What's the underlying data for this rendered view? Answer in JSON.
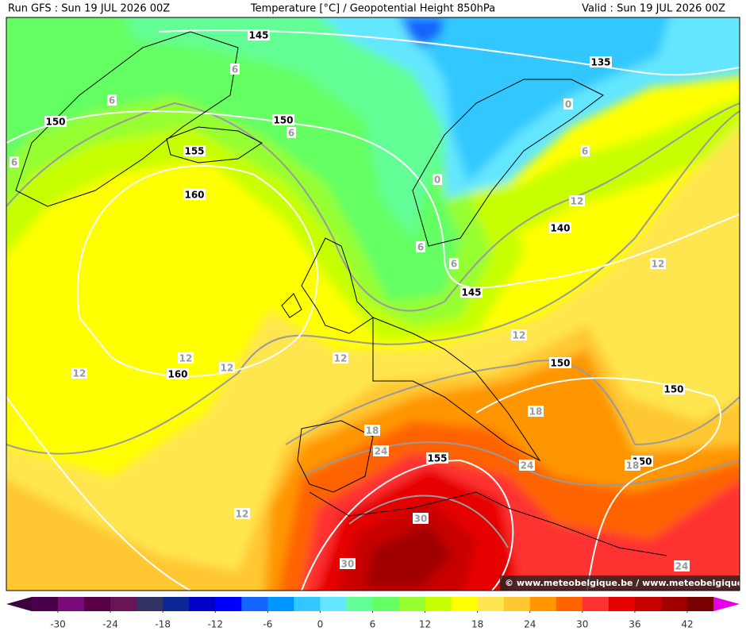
{
  "header": {
    "left": "Run GFS : Sun 19 JUL 2026 00Z",
    "center": "Temperature [°C] / Geopotential Height 850hPa",
    "right": "Valid : Sun 19 JUL 2026 00Z"
  },
  "map": {
    "height_labels": [
      "145",
      "135",
      "150",
      "150",
      "155",
      "160",
      "140",
      "145",
      "160",
      "150",
      "150",
      "155",
      "150"
    ],
    "temperature_labels": [
      "6",
      "6",
      "6",
      "6",
      "0",
      "6",
      "0",
      "12",
      "6",
      "6",
      "12",
      "12",
      "12",
      "12",
      "12",
      "12",
      "18",
      "18",
      "24",
      "24",
      "18",
      "30",
      "30",
      "12",
      "24"
    ],
    "watermark": "© www.meteobelgique.be / www.meteobelgique.be"
  },
  "colorbar": {
    "lim": [
      -33,
      45
    ],
    "ticks": [
      -30,
      -24,
      -18,
      -12,
      -6,
      0,
      6,
      12,
      18,
      24,
      30,
      36,
      42
    ],
    "under_color": "#3c003c",
    "over_color": "#e600e6",
    "colors": [
      "#4a004a",
      "#7a0a7a",
      "#5a0046",
      "#6a1458",
      "#323264",
      "#0a2896",
      "#0000c8",
      "#0000ff",
      "#1464ff",
      "#0096ff",
      "#32c8ff",
      "#64e6ff",
      "#64ff96",
      "#64ff64",
      "#96ff32",
      "#c8ff00",
      "#ffff00",
      "#ffe650",
      "#ffc832",
      "#ff9600",
      "#ff6400",
      "#ff3232",
      "#e60000",
      "#c80000",
      "#a00000",
      "#780000"
    ]
  }
}
